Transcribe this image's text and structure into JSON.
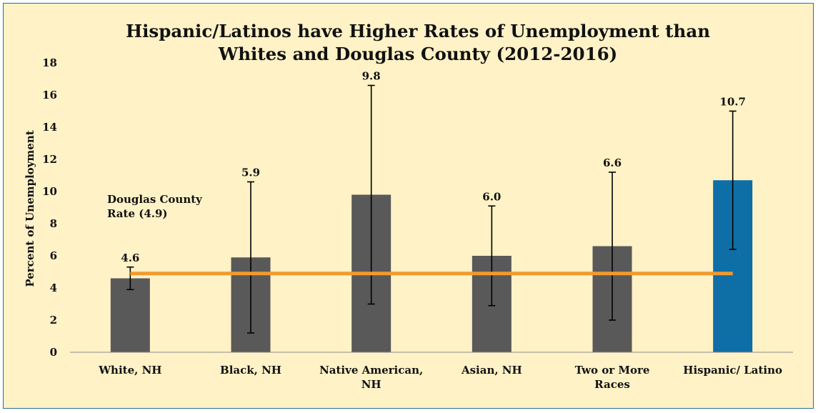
{
  "chart_data": {
    "type": "bar",
    "title_lines": [
      "Hispanic/Latinos have Higher Rates of Unemployment than",
      "Whites and Douglas County (2012-2016)"
    ],
    "xlabel": "",
    "ylabel": "Percent of Unemployment",
    "ylim": [
      0,
      18
    ],
    "yticks": [
      0,
      2,
      4,
      6,
      8,
      10,
      12,
      14,
      16,
      18
    ],
    "grid": false,
    "categories": [
      [
        "White, NH"
      ],
      [
        "Black, NH"
      ],
      [
        "Native American,",
        "NH"
      ],
      [
        "Asian, NH"
      ],
      [
        "Two or More",
        "Races"
      ],
      [
        "Hispanic/ Latino"
      ]
    ],
    "values": [
      4.6,
      5.9,
      9.8,
      6.0,
      6.6,
      10.7
    ],
    "value_labels": [
      "4.6",
      "5.9",
      "9.8",
      "6.0",
      "6.6",
      "10.7"
    ],
    "error_bars": [
      {
        "low": 3.9,
        "high": 5.3
      },
      {
        "low": 1.2,
        "high": 10.6
      },
      {
        "low": 3.0,
        "high": 16.6
      },
      {
        "low": 2.9,
        "high": 9.1
      },
      {
        "low": 2.0,
        "high": 11.2
      },
      {
        "low": 6.4,
        "high": 15.0
      }
    ],
    "bar_colors": [
      "#595959",
      "#595959",
      "#595959",
      "#595959",
      "#595959",
      "#0e6ea6"
    ],
    "reference_line": {
      "value": 4.9,
      "label_lines": [
        "Douglas County",
        "Rate (4.9)"
      ],
      "color": "#f29a2e"
    },
    "background_color": "#fff2c6",
    "border_color": "#2c6e9e"
  }
}
